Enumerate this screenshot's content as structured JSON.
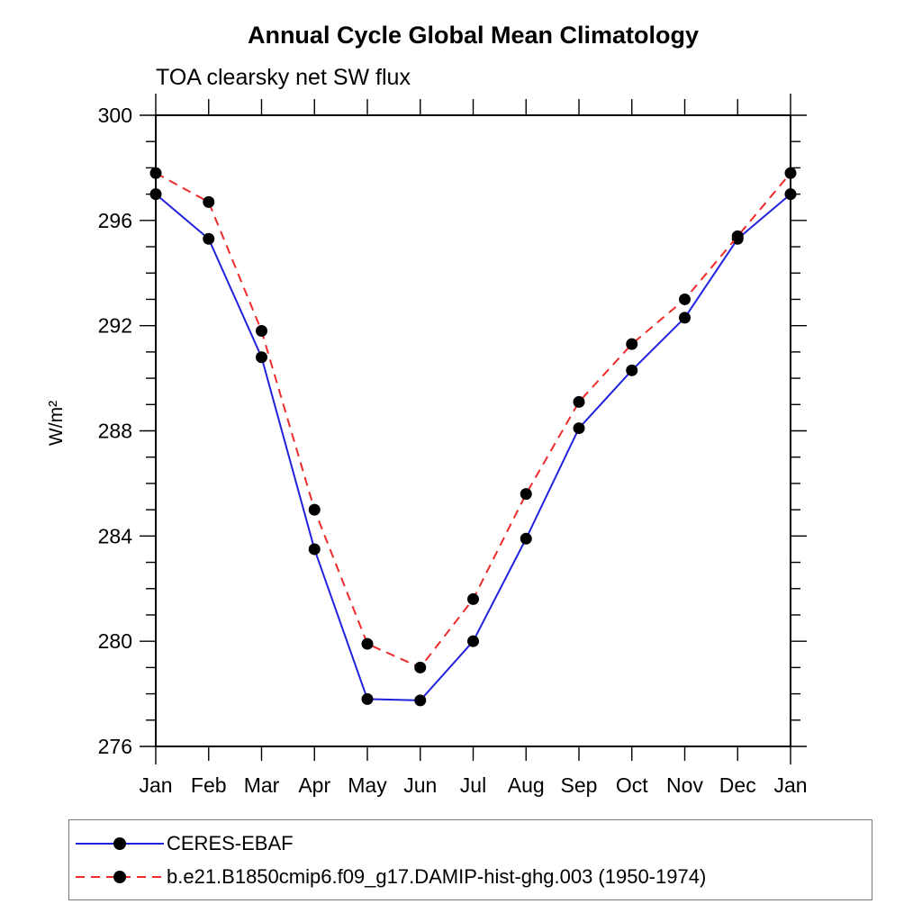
{
  "chart_data": {
    "type": "line",
    "title": "Annual Cycle Global Mean Climatology",
    "subtitle": "TOA clearsky net SW flux",
    "ylabel": "W/m²",
    "xlabel": "",
    "x_categories": [
      "Jan",
      "Feb",
      "Mar",
      "Apr",
      "May",
      "Jun",
      "Jul",
      "Aug",
      "Sep",
      "Oct",
      "Nov",
      "Dec",
      "Jan"
    ],
    "ylim": [
      276,
      300
    ],
    "y_major_tick_step": 4,
    "y_minor_tick_step": 1,
    "y_major_tick_labels": [
      "276",
      "280",
      "284",
      "288",
      "292",
      "296",
      "300"
    ],
    "grid": false,
    "legend_position": "bottom",
    "series": [
      {
        "name": "CERES-EBAF",
        "color": "#2222dd",
        "line_style": "solid",
        "marker": "filled-circle",
        "marker_color": "#000000",
        "values": [
          297.0,
          295.3,
          290.8,
          283.5,
          277.8,
          277.75,
          280.0,
          283.9,
          288.1,
          290.3,
          292.3,
          295.3,
          297.0
        ]
      },
      {
        "name": "b.e21.B1850cmip6.f09_g17.DAMIP-hist-ghg.003 (1950-1974)",
        "color": "#ee2a2a",
        "line_style": "dashed",
        "marker": "filled-circle",
        "marker_color": "#000000",
        "values": [
          297.8,
          296.7,
          291.8,
          285.0,
          279.9,
          279.0,
          281.6,
          285.6,
          289.1,
          291.3,
          293.0,
          295.4,
          297.8
        ]
      }
    ]
  }
}
